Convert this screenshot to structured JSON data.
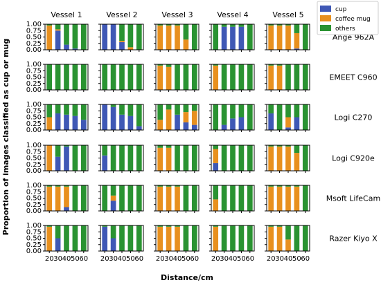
{
  "chart_data": {
    "type": "bar",
    "stacked": true,
    "ylabel": "Proportion of images classified as cup or mug",
    "xlabel": "Distance/cm",
    "x": [
      20,
      30,
      40,
      50,
      60
    ],
    "x_ticks": [
      "20",
      "30",
      "40",
      "50",
      "60"
    ],
    "y_ticks": [
      "0.00",
      "0.25",
      "0.50",
      "0.75",
      "1.00"
    ],
    "ylim": [
      0,
      1
    ],
    "legend": {
      "placement": "top-right",
      "entries": [
        {
          "name": "cup",
          "color": "#3f58b5"
        },
        {
          "name": "coffee mug",
          "color": "#e8901e"
        },
        {
          "name": "others",
          "color": "#2a9332"
        }
      ]
    },
    "columns": [
      "Vessel 1",
      "Vessel 2",
      "Vessel 3",
      "Vessel 4",
      "Vessel 5"
    ],
    "rows": [
      "Ange 962A",
      "EMEET C960",
      "Logi C270",
      "Logi C920e",
      "Msoft LifeCam",
      "Razer Kiyo X"
    ],
    "note": "each cell value = [cup, coffee mug] proportion for distances 20,30,40,50,60; others = remainder",
    "cells": [
      [
        [
          [
            0.0,
            0.95
          ],
          [
            0.75,
            0.05
          ],
          [
            0.2,
            0.0
          ],
          [
            0.05,
            0.0
          ],
          [
            0.0,
            0.0
          ]
        ],
        [
          [
            1.0,
            0.0
          ],
          [
            1.0,
            0.0
          ],
          [
            0.3,
            0.05
          ],
          [
            0.0,
            0.1
          ],
          [
            0.0,
            0.0
          ]
        ],
        [
          [
            0.0,
            0.95
          ],
          [
            0.0,
            0.95
          ],
          [
            0.0,
            0.95
          ],
          [
            0.0,
            0.4
          ],
          [
            0.0,
            0.0
          ]
        ],
        [
          [
            0.0,
            0.0
          ],
          [
            0.9,
            0.0
          ],
          [
            0.9,
            0.0
          ],
          [
            0.9,
            0.0
          ],
          [
            0.0,
            0.0
          ]
        ],
        [
          [
            0.0,
            0.95
          ],
          [
            0.0,
            0.95
          ],
          [
            0.0,
            0.95
          ],
          [
            0.05,
            0.6
          ],
          [
            0.0,
            0.0
          ]
        ]
      ],
      [
        [
          [
            0.0,
            0.0
          ],
          [
            0.0,
            0.0
          ],
          [
            0.0,
            0.0
          ],
          [
            0.0,
            0.0
          ],
          [
            0.0,
            0.0
          ]
        ],
        [
          [
            0.0,
            0.0
          ],
          [
            0.0,
            0.0
          ],
          [
            0.0,
            0.0
          ],
          [
            0.0,
            0.0
          ],
          [
            0.0,
            0.0
          ]
        ],
        [
          [
            0.0,
            0.95
          ],
          [
            0.0,
            0.9
          ],
          [
            0.0,
            0.0
          ],
          [
            0.0,
            0.0
          ],
          [
            0.0,
            0.0
          ]
        ],
        [
          [
            0.0,
            0.95
          ],
          [
            0.0,
            0.0
          ],
          [
            0.0,
            0.0
          ],
          [
            0.0,
            0.0
          ],
          [
            0.0,
            0.0
          ]
        ],
        [
          [
            0.0,
            0.95
          ],
          [
            0.0,
            0.95
          ],
          [
            0.0,
            0.0
          ],
          [
            0.0,
            0.0
          ],
          [
            0.0,
            0.0
          ]
        ]
      ],
      [
        [
          [
            0.0,
            0.5
          ],
          [
            0.65,
            0.0
          ],
          [
            0.6,
            0.0
          ],
          [
            0.55,
            0.0
          ],
          [
            0.4,
            0.0
          ]
        ],
        [
          [
            1.0,
            0.0
          ],
          [
            0.9,
            0.0
          ],
          [
            0.6,
            0.0
          ],
          [
            0.55,
            0.0
          ],
          [
            0.15,
            0.0
          ]
        ],
        [
          [
            0.0,
            0.4
          ],
          [
            0.0,
            0.8
          ],
          [
            0.6,
            0.0
          ],
          [
            0.3,
            0.4
          ],
          [
            0.2,
            0.55
          ]
        ],
        [
          [
            0.0,
            0.0
          ],
          [
            0.2,
            0.0
          ],
          [
            0.45,
            0.0
          ],
          [
            0.5,
            0.0
          ],
          [
            0.0,
            0.0
          ]
        ],
        [
          [
            0.65,
            0.0
          ],
          [
            0.0,
            0.0
          ],
          [
            0.1,
            0.4
          ],
          [
            0.5,
            0.0
          ],
          [
            0.0,
            0.0
          ]
        ]
      ],
      [
        [
          [
            0.0,
            1.0
          ],
          [
            0.55,
            0.0
          ],
          [
            0.95,
            0.0
          ],
          [
            0.0,
            0.0
          ],
          [
            0.0,
            0.0
          ]
        ],
        [
          [
            0.6,
            0.0
          ],
          [
            0.0,
            0.0
          ],
          [
            0.0,
            0.0
          ],
          [
            0.0,
            0.0
          ],
          [
            0.0,
            0.0
          ]
        ],
        [
          [
            0.0,
            0.9
          ],
          [
            0.0,
            0.9
          ],
          [
            0.0,
            0.0
          ],
          [
            0.0,
            0.0
          ],
          [
            0.0,
            0.0
          ]
        ],
        [
          [
            0.3,
            0.55
          ],
          [
            0.0,
            0.0
          ],
          [
            0.0,
            0.0
          ],
          [
            0.0,
            0.0
          ],
          [
            0.0,
            0.0
          ]
        ],
        [
          [
            0.0,
            0.95
          ],
          [
            0.0,
            0.95
          ],
          [
            0.0,
            0.95
          ],
          [
            0.0,
            0.7
          ],
          [
            0.0,
            0.0
          ]
        ]
      ],
      [
        [
          [
            0.0,
            0.95
          ],
          [
            0.0,
            0.95
          ],
          [
            0.15,
            0.8
          ],
          [
            0.0,
            0.0
          ],
          [
            0.0,
            0.0
          ]
        ],
        [
          [
            0.0,
            0.0
          ],
          [
            0.4,
            0.2
          ],
          [
            0.0,
            0.0
          ],
          [
            0.0,
            0.0
          ],
          [
            0.0,
            0.0
          ]
        ],
        [
          [
            0.0,
            0.95
          ],
          [
            0.0,
            0.95
          ],
          [
            0.0,
            0.95
          ],
          [
            0.0,
            0.0
          ],
          [
            0.0,
            0.0
          ]
        ],
        [
          [
            0.0,
            0.45
          ],
          [
            0.0,
            0.0
          ],
          [
            0.0,
            0.0
          ],
          [
            0.0,
            0.0
          ],
          [
            0.0,
            0.0
          ]
        ],
        [
          [
            0.0,
            0.95
          ],
          [
            0.0,
            0.95
          ],
          [
            0.0,
            0.95
          ],
          [
            0.0,
            0.95
          ],
          [
            0.0,
            0.0
          ]
        ]
      ],
      [
        [
          [
            0.0,
            0.95
          ],
          [
            0.5,
            0.0
          ],
          [
            0.0,
            0.0
          ],
          [
            0.0,
            0.0
          ],
          [
            0.0,
            0.0
          ]
        ],
        [
          [
            0.95,
            0.0
          ],
          [
            0.5,
            0.0
          ],
          [
            0.0,
            0.0
          ],
          [
            0.0,
            0.0
          ],
          [
            0.0,
            0.0
          ]
        ],
        [
          [
            0.0,
            0.95
          ],
          [
            0.0,
            0.95
          ],
          [
            0.0,
            0.95
          ],
          [
            0.0,
            0.0
          ],
          [
            0.0,
            0.0
          ]
        ],
        [
          [
            0.0,
            0.95
          ],
          [
            0.0,
            0.0
          ],
          [
            0.0,
            0.0
          ],
          [
            0.0,
            0.0
          ],
          [
            0.0,
            0.0
          ]
        ],
        [
          [
            0.0,
            0.95
          ],
          [
            0.0,
            0.95
          ],
          [
            0.0,
            0.45
          ],
          [
            0.0,
            0.0
          ],
          [
            0.0,
            0.0
          ]
        ]
      ]
    ]
  }
}
